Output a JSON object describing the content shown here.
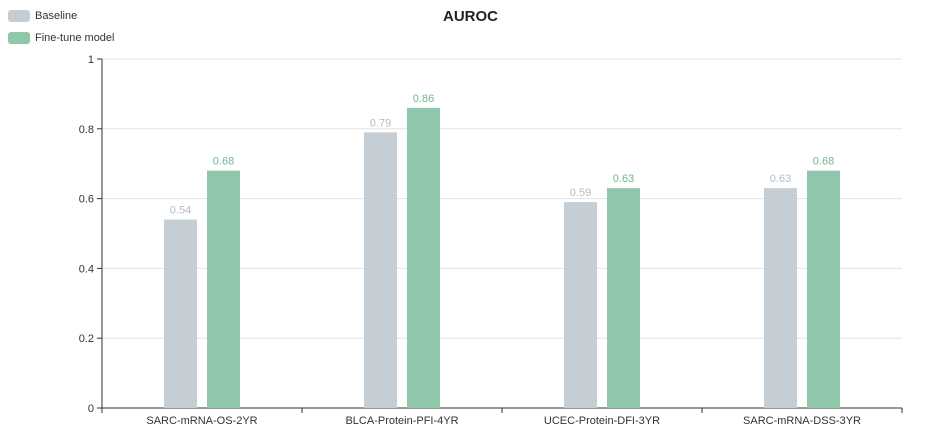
{
  "chart_data": {
    "type": "bar",
    "title": "AUROC",
    "categories": [
      "SARC-mRNA-OS-2YR",
      "BLCA-Protein-PFI-4YR",
      "UCEC-Protein-DFI-3YR",
      "SARC-mRNA-DSS-3YR"
    ],
    "series": [
      {
        "name": "Baseline",
        "values": [
          0.54,
          0.79,
          0.59,
          0.63
        ],
        "color": "#c5cdd5",
        "label_color": "#b4bcc6"
      },
      {
        "name": "Fine-tune model",
        "values": [
          0.68,
          0.86,
          0.63,
          0.68
        ],
        "color": "#90c6aa",
        "label_color": "#6fb690"
      }
    ],
    "ylim": [
      0,
      1
    ],
    "yticks": [
      "0",
      "0.2",
      "0.4",
      "0.6",
      "0.8",
      "1"
    ],
    "grid": true,
    "legend_position": "top-left",
    "xlabel": "",
    "ylabel": ""
  }
}
